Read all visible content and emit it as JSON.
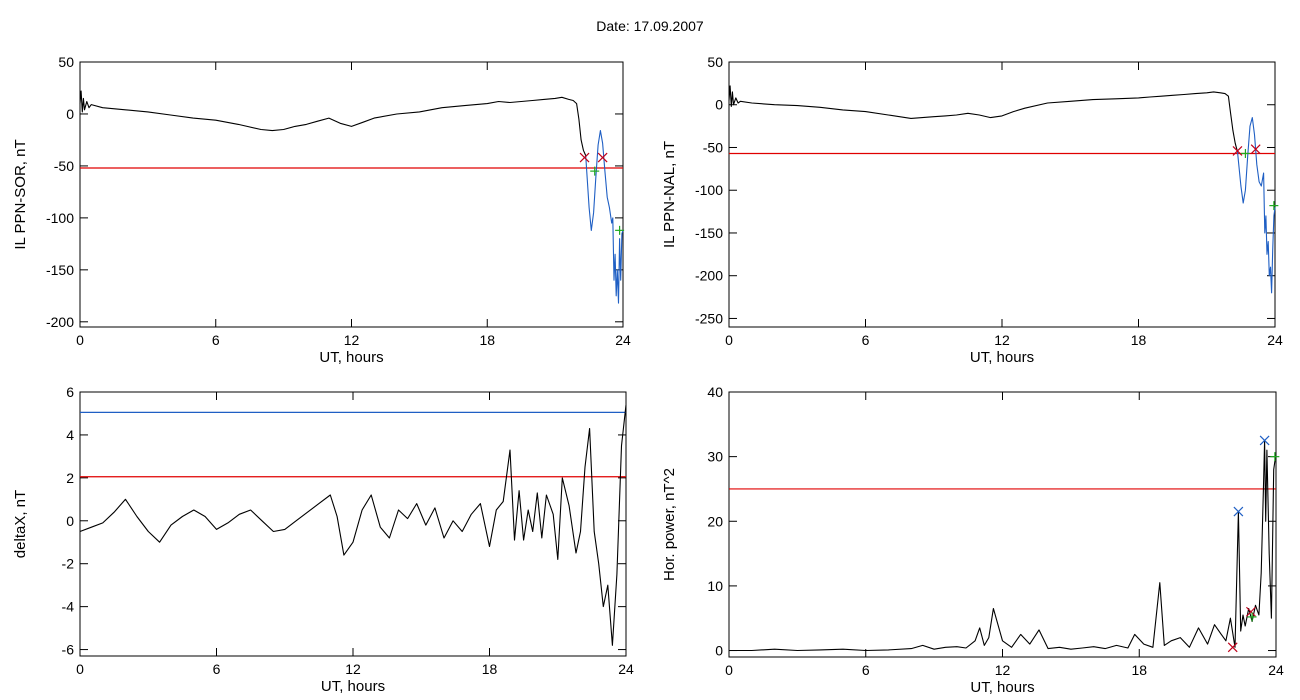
{
  "page": {
    "title": "Date:  17.09.2007"
  },
  "chart_data": [
    {
      "type": "line",
      "xlabel": "UT, hours",
      "ylabel": "IL PPN-SOR, nT",
      "xlim": [
        0,
        24
      ],
      "ylim": [
        -205,
        50
      ],
      "xticks": [
        0,
        6,
        12,
        18,
        24
      ],
      "yticks": [
        50,
        0,
        -50,
        -100,
        -150,
        -200
      ],
      "threshold": {
        "value": -52,
        "color": "#e00000"
      },
      "series": [
        {
          "color": "#000000",
          "x": [
            0,
            0.05,
            0.1,
            0.15,
            0.2,
            0.3,
            0.4,
            0.5,
            1,
            2,
            3,
            4,
            5,
            6,
            7,
            8,
            8.5,
            9,
            9.5,
            10,
            10.5,
            11,
            11.5,
            12,
            12.5,
            13,
            14,
            15,
            16,
            17,
            18,
            18.5,
            19,
            19.5,
            20,
            20.5,
            21,
            21.3,
            21.6,
            21.8,
            21.95,
            22.05,
            22.15,
            22.25,
            22.35
          ],
          "y": [
            10,
            22,
            2,
            15,
            4,
            12,
            6,
            9,
            6,
            4,
            2,
            -1,
            -4,
            -6,
            -10,
            -15,
            -16,
            -15,
            -12,
            -10,
            -7,
            -4,
            -9,
            -12,
            -8,
            -4,
            0,
            2,
            6,
            8,
            10,
            12,
            11,
            12,
            13,
            14,
            15,
            16,
            14,
            13,
            10,
            -5,
            -25,
            -35,
            -40
          ]
        },
        {
          "color": "#1f5fc4",
          "x": [
            22.35,
            22.5,
            22.6,
            22.7,
            22.8,
            22.9,
            23.0,
            23.1,
            23.2,
            23.3,
            23.4,
            23.5,
            23.55,
            23.6,
            23.65,
            23.7,
            23.75,
            23.8,
            23.85,
            23.9,
            23.95,
            24.0
          ],
          "y": [
            -40,
            -90,
            -112,
            -95,
            -60,
            -30,
            -16,
            -28,
            -55,
            -80,
            -90,
            -105,
            -100,
            -160,
            -135,
            -175,
            -150,
            -182,
            -120,
            -160,
            -115,
            -112
          ]
        }
      ],
      "markers": [
        {
          "x": 22.3,
          "y": -42,
          "color": "#c0001a",
          "symbol": "x"
        },
        {
          "x": 23.1,
          "y": -42,
          "color": "#c0001a",
          "symbol": "x"
        },
        {
          "x": 22.75,
          "y": -55,
          "color": "#22aa22",
          "symbol": "+"
        },
        {
          "x": 23.85,
          "y": -112,
          "color": "#22aa22",
          "symbol": "+"
        }
      ]
    },
    {
      "type": "line",
      "xlabel": "UT, hours",
      "ylabel": "IL PPN-NAL, nT",
      "xlim": [
        0,
        24
      ],
      "ylim": [
        -260,
        50
      ],
      "xticks": [
        0,
        6,
        12,
        18,
        24
      ],
      "yticks": [
        50,
        0,
        -50,
        -100,
        -150,
        -200,
        -250
      ],
      "threshold": {
        "value": -57,
        "color": "#e00000"
      },
      "series": [
        {
          "color": "#000000",
          "x": [
            0,
            0.05,
            0.1,
            0.15,
            0.2,
            0.3,
            0.4,
            0.5,
            1,
            2,
            3,
            4,
            5,
            6,
            7,
            8,
            8.5,
            9,
            9.5,
            10,
            10.5,
            11,
            11.5,
            12,
            12.5,
            13,
            14,
            15,
            16,
            17,
            18,
            18.5,
            19,
            19.5,
            20,
            20.5,
            21,
            21.3,
            21.6,
            21.8,
            21.95,
            22.05,
            22.15,
            22.25,
            22.35
          ],
          "y": [
            5,
            22,
            -2,
            15,
            0,
            8,
            2,
            4,
            2,
            0,
            -1,
            -3,
            -6,
            -8,
            -12,
            -16,
            -15,
            -14,
            -13,
            -12,
            -10,
            -12,
            -15,
            -13,
            -8,
            -4,
            2,
            4,
            6,
            7,
            8,
            9,
            10,
            11,
            12,
            13,
            14,
            15,
            14,
            13,
            10,
            -10,
            -30,
            -45,
            -55
          ]
        },
        {
          "color": "#1f5fc4",
          "x": [
            22.35,
            22.5,
            22.6,
            22.7,
            22.8,
            22.9,
            23.0,
            23.1,
            23.2,
            23.3,
            23.4,
            23.5,
            23.55,
            23.6,
            23.65,
            23.7,
            23.75,
            23.8,
            23.85,
            23.9,
            23.95,
            24.0
          ],
          "y": [
            -55,
            -95,
            -115,
            -100,
            -60,
            -25,
            -15,
            -35,
            -70,
            -90,
            -95,
            -80,
            -150,
            -130,
            -175,
            -160,
            -200,
            -190,
            -220,
            -170,
            -130,
            -120
          ]
        }
      ],
      "markers": [
        {
          "x": 22.35,
          "y": -54,
          "color": "#c0001a",
          "symbol": "x"
        },
        {
          "x": 23.15,
          "y": -52,
          "color": "#c0001a",
          "symbol": "x"
        },
        {
          "x": 22.7,
          "y": -57,
          "color": "#22aa22",
          "symbol": "+"
        },
        {
          "x": 23.95,
          "y": -118,
          "color": "#22aa22",
          "symbol": "+"
        }
      ]
    },
    {
      "type": "line",
      "xlabel": "UT, hours",
      "ylabel": "deltaX, nT",
      "xlim": [
        0,
        24
      ],
      "ylim": [
        -6.3,
        6
      ],
      "xticks": [
        0,
        6,
        12,
        18,
        24
      ],
      "yticks": [
        6,
        4,
        2,
        0,
        -2,
        -4,
        -6
      ],
      "thresholds": [
        {
          "value": 5.05,
          "color": "#1f5fc4"
        },
        {
          "value": 2.05,
          "color": "#e00000"
        }
      ],
      "series": [
        {
          "color": "#000000",
          "x": [
            0,
            0.5,
            1,
            1.5,
            2,
            2.5,
            3,
            3.5,
            4,
            4.5,
            5,
            5.5,
            6,
            6.5,
            7,
            7.5,
            8,
            8.5,
            9,
            9.5,
            10,
            10.5,
            11,
            11.3,
            11.6,
            12,
            12.4,
            12.8,
            13.2,
            13.6,
            14,
            14.4,
            14.8,
            15.2,
            15.6,
            16,
            16.4,
            16.8,
            17.2,
            17.6,
            18,
            18.3,
            18.6,
            18.9,
            19.1,
            19.3,
            19.5,
            19.7,
            19.9,
            20.1,
            20.3,
            20.5,
            20.8,
            21.0,
            21.2,
            21.5,
            21.8,
            22.0,
            22.2,
            22.4,
            22.6,
            22.8,
            23.0,
            23.2,
            23.4,
            23.6,
            23.8,
            24.0
          ],
          "y": [
            -0.5,
            -0.3,
            -0.1,
            0.4,
            1.0,
            0.2,
            -0.5,
            -1.0,
            -0.2,
            0.2,
            0.5,
            0.2,
            -0.4,
            -0.1,
            0.3,
            0.5,
            0.0,
            -0.5,
            -0.4,
            0.0,
            0.4,
            0.8,
            1.2,
            0.2,
            -1.6,
            -1.0,
            0.5,
            1.2,
            -0.3,
            -0.8,
            0.5,
            0.1,
            0.8,
            -0.2,
            0.6,
            -0.8,
            0.0,
            -0.5,
            0.3,
            0.8,
            -1.2,
            0.5,
            0.9,
            3.3,
            -0.9,
            1.4,
            -0.9,
            0.5,
            -0.5,
            1.3,
            -0.8,
            1.2,
            0.3,
            -1.8,
            2.0,
            0.7,
            -1.5,
            -0.5,
            2.5,
            4.3,
            -0.5,
            -2.0,
            -4.0,
            -3.0,
            -5.8,
            -2.5,
            3.5,
            5.4
          ]
        }
      ],
      "markers": []
    },
    {
      "type": "line",
      "xlabel": "UT, hours",
      "ylabel": "Hor. power, nT^2",
      "xlim": [
        0,
        24
      ],
      "ylim": [
        -1,
        40
      ],
      "xticks": [
        0,
        6,
        12,
        18,
        24
      ],
      "yticks": [
        40,
        30,
        20,
        10,
        0
      ],
      "threshold": {
        "value": 25,
        "color": "#e00000"
      },
      "series": [
        {
          "color": "#000000",
          "x": [
            0,
            1,
            2,
            3,
            4,
            5,
            6,
            7,
            8,
            8.5,
            9,
            9.5,
            10,
            10.4,
            10.8,
            11.0,
            11.2,
            11.4,
            11.6,
            12.0,
            12.4,
            12.8,
            13.2,
            13.6,
            14.0,
            14.5,
            15.0,
            15.5,
            16.0,
            16.5,
            17.0,
            17.5,
            17.8,
            18.2,
            18.6,
            18.9,
            19.1,
            19.4,
            19.8,
            20.2,
            20.6,
            21.0,
            21.3,
            21.6,
            21.8,
            22.0,
            22.2,
            22.35,
            22.45,
            22.55,
            22.65,
            22.8,
            22.95,
            23.1,
            23.25,
            23.35,
            23.45,
            23.5,
            23.55,
            23.6,
            23.7,
            23.8,
            23.9,
            24.0
          ],
          "y": [
            0,
            0,
            0.2,
            0,
            0.1,
            0.2,
            0,
            0.1,
            0.3,
            0.8,
            0.2,
            0.5,
            0.6,
            0.4,
            1.5,
            3.5,
            0.8,
            2.0,
            6.5,
            1.5,
            0.5,
            2.5,
            1.0,
            3.2,
            0.3,
            0.5,
            0.2,
            0.4,
            0.6,
            0.3,
            0.8,
            0.4,
            2.5,
            1.0,
            0.5,
            10.5,
            0.8,
            1.5,
            2.0,
            0.5,
            3.5,
            1.0,
            4.0,
            2.5,
            1.5,
            5.0,
            0.5,
            21.5,
            3.0,
            5.5,
            3.8,
            6.5,
            4.5,
            7.0,
            5.5,
            12.0,
            25.5,
            32.5,
            20.0,
            31.0,
            15.0,
            5.0,
            28.0,
            30.5
          ]
        }
      ],
      "markers": [
        {
          "x": 22.35,
          "y": 21.5,
          "color": "#1f5fc4",
          "symbol": "x"
        },
        {
          "x": 23.5,
          "y": 32.5,
          "color": "#1f5fc4",
          "symbol": "x"
        },
        {
          "x": 22.1,
          "y": 0.5,
          "color": "#c0001a",
          "symbol": "x"
        },
        {
          "x": 22.9,
          "y": 6.0,
          "color": "#c0001a",
          "symbol": "x"
        },
        {
          "x": 22.95,
          "y": 5.2,
          "color": "#22aa22",
          "symbol": "+"
        },
        {
          "x": 23.95,
          "y": 30.0,
          "color": "#22aa22",
          "symbol": "+"
        }
      ]
    }
  ]
}
